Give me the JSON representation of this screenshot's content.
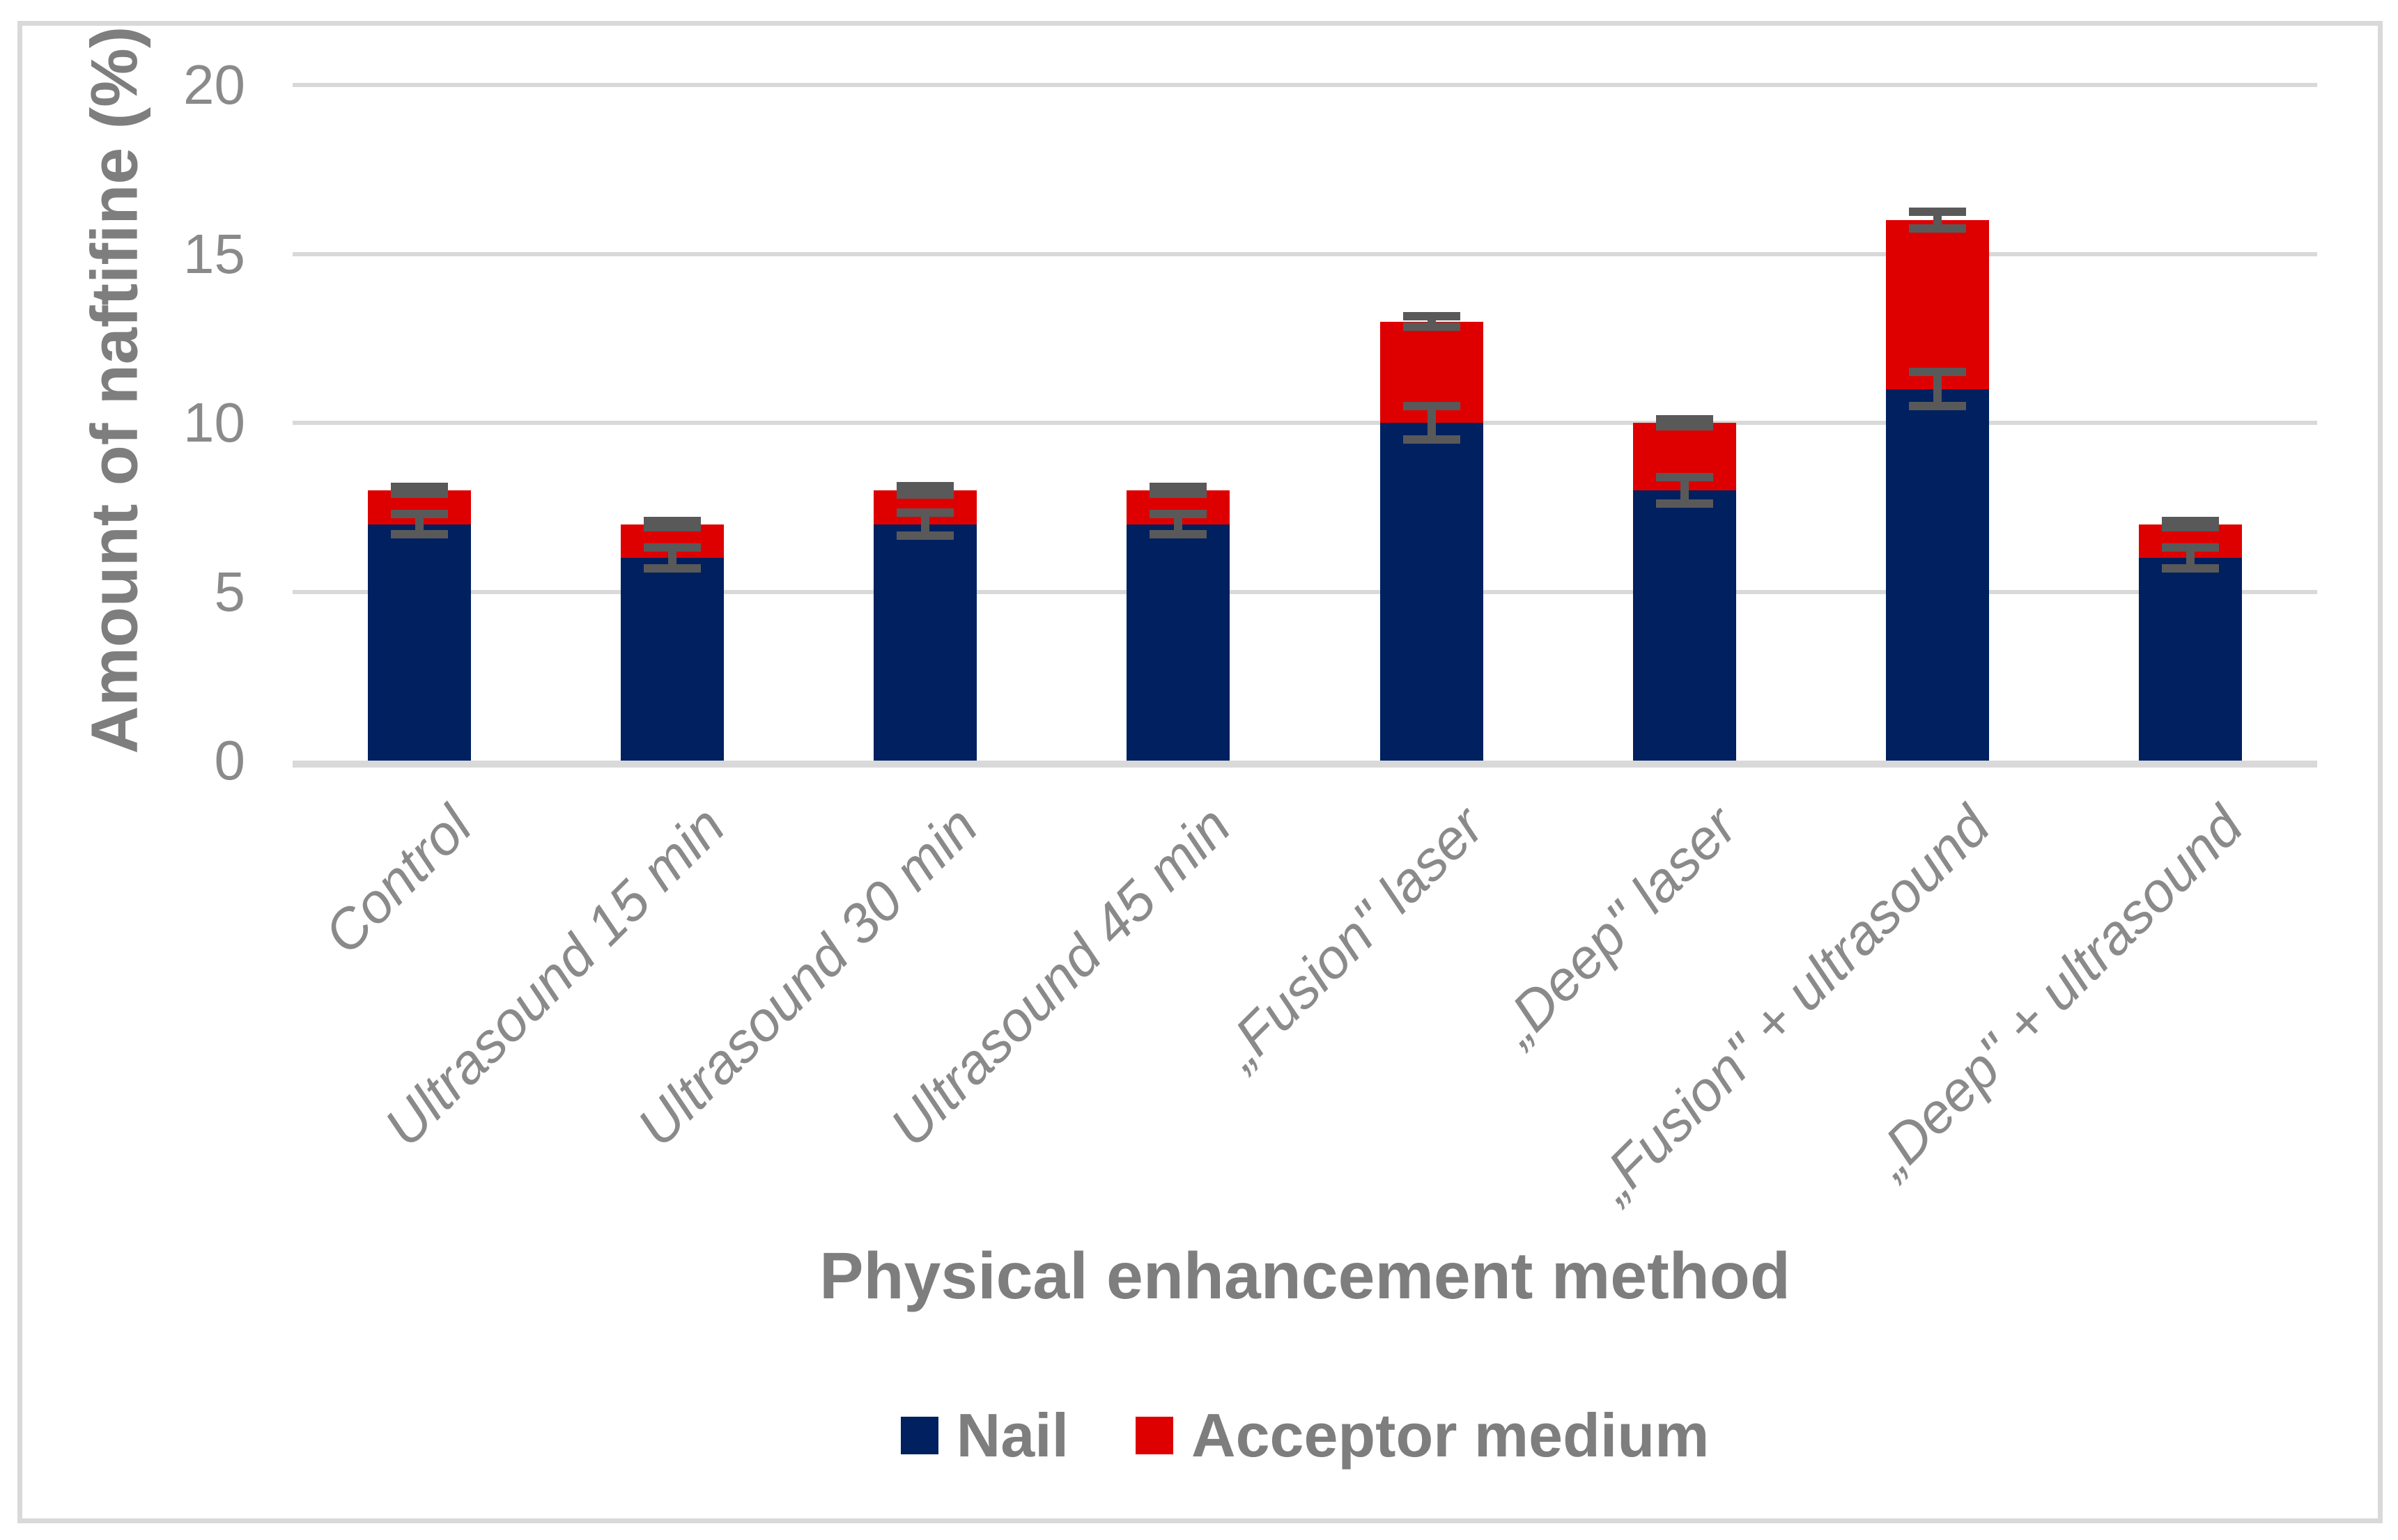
{
  "chart_data": {
    "type": "bar",
    "stacked": true,
    "title": "",
    "xlabel": "Physical enhancement method",
    "ylabel": "Amount of naftifine (%)",
    "categories": [
      "Control",
      "Ultrasound 15 min",
      "Ultrasound 30 min",
      "Ultrasound 45 min",
      "„Fusion\" laser",
      "„Deep\" laser",
      "„Fusion\" + ultrasound",
      "„Deep\" + ultrasound"
    ],
    "series": [
      {
        "name": "Nail",
        "color": "#002060",
        "values": [
          7,
          6,
          7,
          7,
          10,
          8,
          11,
          6
        ],
        "errors": [
          0.3,
          0.3,
          0.35,
          0.3,
          0.5,
          0.4,
          0.5,
          0.3
        ]
      },
      {
        "name": "Acceptor medium",
        "color": "#DE0000",
        "values": [
          1,
          1,
          1,
          1,
          3,
          2,
          5,
          1
        ],
        "errors": [
          0.1,
          0.1,
          0.12,
          0.1,
          0.15,
          0.1,
          0.25,
          0.1
        ]
      }
    ],
    "totals": [
      8,
      7,
      8,
      8,
      13,
      10,
      16,
      7
    ],
    "ylim": [
      0,
      20
    ],
    "yticks": [
      0,
      5,
      10,
      15,
      20
    ],
    "grid": true,
    "legend_position": "bottom",
    "error_bars": "both-directions, drawn at top of each stacked segment",
    "colors": {
      "nail": "#002060",
      "acceptor_medium": "#DE0000",
      "gridline": "#D9D9D9",
      "axis_line": "#D9D9D9",
      "error_bar": "#595959",
      "tick_text": "#8A8A8A",
      "title_text": "#7E7E7E",
      "border": "#D9D9D9",
      "background": "#FFFFFF"
    }
  }
}
